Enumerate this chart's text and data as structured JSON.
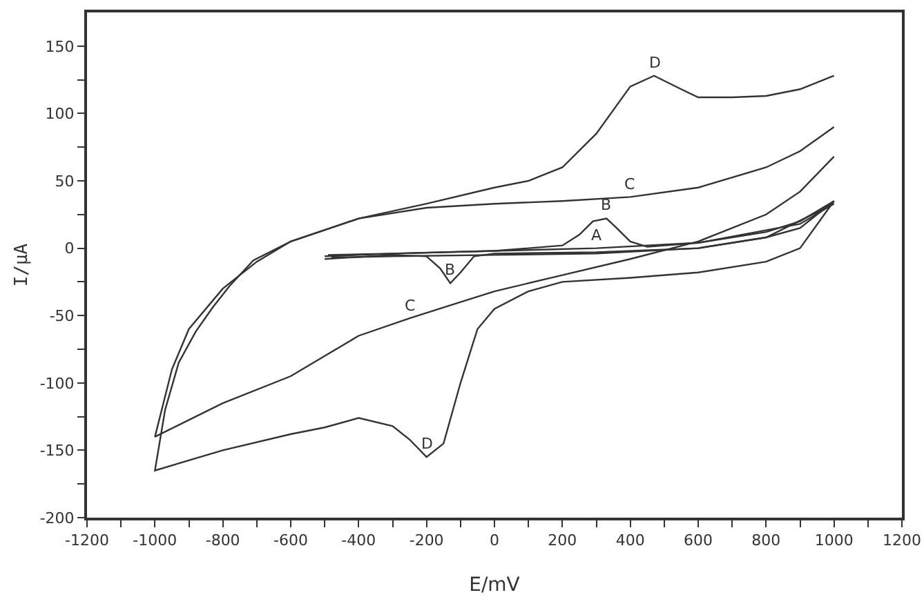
{
  "chart_data": {
    "type": "line",
    "xlabel": "E/mV",
    "ylabel": "I/μA",
    "xlim": [
      -1200,
      1200
    ],
    "ylim": [
      -200,
      175
    ],
    "xticks": [
      -1200,
      {
        "value": -1100,
        "label": null
      },
      -1000,
      {
        "value": -900,
        "label": null
      },
      -800,
      {
        "value": -700,
        "label": null
      },
      -600,
      {
        "value": -500,
        "label": null
      },
      -400,
      {
        "value": -300,
        "label": null
      },
      -200,
      {
        "value": -100,
        "label": null
      },
      0,
      {
        "value": 100,
        "label": null
      },
      200,
      {
        "value": 300,
        "label": null
      },
      400,
      {
        "value": 500,
        "label": null
      },
      600,
      {
        "value": 700,
        "label": null
      },
      800,
      {
        "value": 900,
        "label": null
      },
      1000,
      {
        "value": 1100,
        "label": null
      },
      1200
    ],
    "yticks": [
      -200,
      {
        "value": -175,
        "label": null
      },
      -150,
      {
        "value": -125,
        "label": null
      },
      -100,
      {
        "value": -75,
        "label": null
      },
      -50,
      {
        "value": -25,
        "label": null
      },
      0,
      {
        "value": 25,
        "label": null
      },
      50,
      {
        "value": 75,
        "label": null
      },
      100,
      {
        "value": 125,
        "label": null
      },
      150
    ],
    "grid": false,
    "marker": "none",
    "line_style": "solid",
    "series": [
      {
        "color": "#333333",
        "x": [
          1000,
          900,
          800,
          600,
          400,
          200,
          100,
          0,
          -50,
          -100,
          -150,
          -200,
          -250,
          -300,
          -400,
          -500,
          -600,
          -800,
          -1000,
          -970,
          -930,
          -880,
          -830,
          -780,
          -710,
          -600,
          -400,
          -200,
          0,
          100,
          200,
          300,
          400,
          470,
          550,
          600,
          700,
          800,
          900,
          1000
        ],
        "values": [
          35,
          0,
          -10,
          -18,
          -22,
          -25,
          -32,
          -45,
          -60,
          -100,
          -145,
          -155,
          -142,
          -132,
          -126,
          -133,
          -138,
          -150,
          -165,
          -120,
          -85,
          -62,
          -44,
          -28,
          -9,
          5,
          22,
          33,
          45,
          50,
          60,
          85,
          120,
          128,
          118,
          112,
          112,
          113,
          118,
          128
        ]
      },
      {
        "color": "#333333",
        "x": [
          1000,
          900,
          800,
          600,
          400,
          200,
          0,
          -200,
          -400,
          -600,
          -700,
          -800,
          -900,
          -950,
          -1000,
          -800,
          -600,
          -500,
          -400,
          -250,
          -100,
          0,
          200,
          400,
          600,
          800,
          900,
          1000
        ],
        "values": [
          90,
          72,
          60,
          45,
          38,
          35,
          33,
          30,
          22,
          5,
          -10,
          -30,
          -60,
          -90,
          -140,
          -115,
          -95,
          -80,
          -65,
          -52,
          -40,
          -32,
          -20,
          -8,
          5,
          25,
          42,
          68
        ]
      },
      {
        "color": "#333333",
        "x": [
          -500,
          -300,
          0,
          300,
          600,
          800,
          900,
          1000,
          900,
          800,
          600,
          300,
          0,
          -300,
          -480
        ],
        "values": [
          -6,
          -4,
          -2,
          0,
          4,
          12,
          20,
          35,
          15,
          8,
          0,
          -4,
          -5,
          -6,
          -7
        ]
      },
      {
        "color": "#333333",
        "x": [
          -500,
          -300,
          -200,
          -160,
          -130,
          -100,
          -60,
          0,
          300,
          600,
          800,
          1000,
          900,
          600,
          450,
          400,
          360,
          330,
          290,
          250,
          200,
          0,
          -300,
          -490
        ],
        "values": [
          -8,
          -5,
          -6,
          -15,
          -26,
          -18,
          -6,
          -4,
          -3,
          0,
          8,
          33,
          18,
          4,
          1,
          5,
          15,
          22,
          20,
          10,
          2,
          -2,
          -4,
          -5
        ]
      }
    ],
    "annotations": [
      {
        "text": "D",
        "x": 470,
        "y": 128
      },
      {
        "text": "D",
        "x": -200,
        "y": -155
      },
      {
        "text": "C",
        "x": 400,
        "y": 38
      },
      {
        "text": "C",
        "x": -250,
        "y": -52
      },
      {
        "text": "A",
        "x": 300,
        "y": 0
      },
      {
        "text": "B",
        "x": 330,
        "y": 22
      },
      {
        "text": "B",
        "x": -130,
        "y": -26
      }
    ]
  }
}
